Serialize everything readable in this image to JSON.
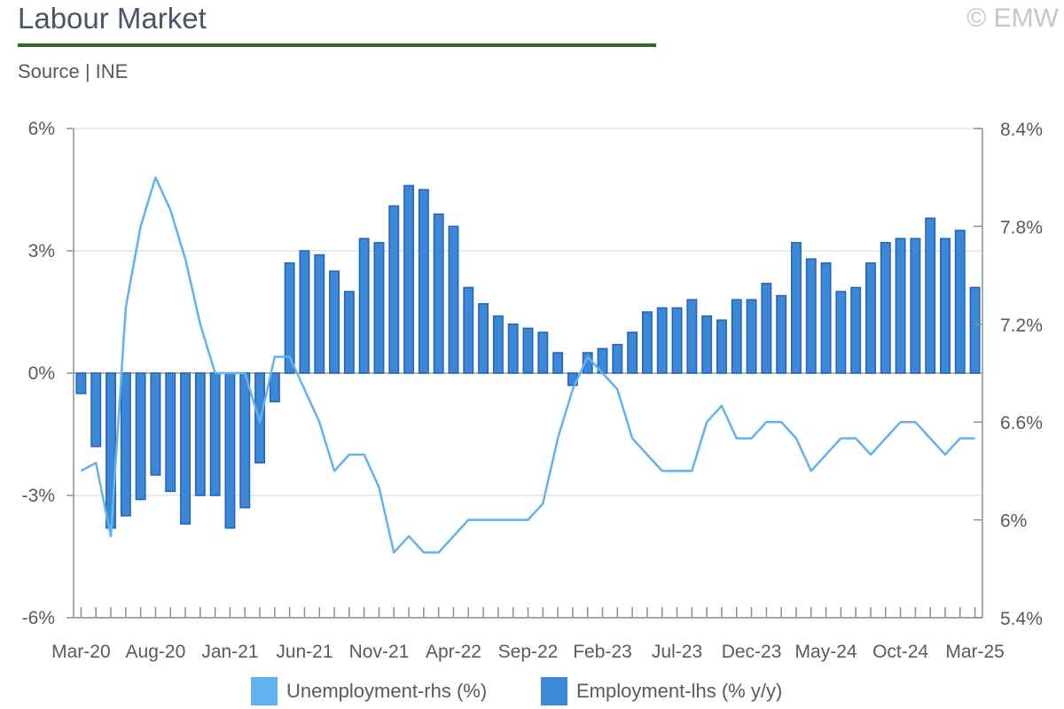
{
  "header": {
    "title": "Labour Market",
    "copyright": "© EMW",
    "source": "Source | INE"
  },
  "legend": {
    "unemployment_label": "Unemployment-rhs (%)",
    "employment_label": "Employment-lhs (% y/y)"
  },
  "colors": {
    "bar_fill": "#3a88d6",
    "bar_edge": "#2563b8",
    "line": "#62b2f0",
    "axis": "#8c9096",
    "grid": "#d9e5f2",
    "title_rule": "#2e6b2b"
  },
  "chart_data": {
    "type": "bar",
    "title": "Labour Market",
    "subtitle": "Source | INE",
    "x_tick_labels": [
      "Mar-20",
      "Aug-20",
      "Jan-21",
      "Jun-21",
      "Nov-21",
      "Apr-22",
      "Sep-22",
      "Feb-23",
      "Jul-23",
      "Dec-23",
      "May-24",
      "Oct-24",
      "Mar-25"
    ],
    "y_left": {
      "range": [
        -6,
        6
      ],
      "ticks": [
        6,
        3,
        0,
        -3,
        -6
      ],
      "tick_labels": [
        "6%",
        "3%",
        "0%",
        "-3%",
        "-6%"
      ]
    },
    "y_right": {
      "range": [
        5.4,
        8.4
      ],
      "ticks": [
        8.4,
        7.8,
        7.2,
        6.6,
        6.0,
        5.4
      ],
      "tick_labels": [
        "8.4%",
        "7.8%",
        "7.2%",
        "6.6%",
        "6%",
        "5.4%"
      ]
    },
    "grid": true,
    "legend_position": "bottom",
    "categories": [
      "Mar-20",
      "Apr-20",
      "May-20",
      "Jun-20",
      "Jul-20",
      "Aug-20",
      "Sep-20",
      "Oct-20",
      "Nov-20",
      "Dec-20",
      "Jan-21",
      "Feb-21",
      "Mar-21",
      "Apr-21",
      "May-21",
      "Jun-21",
      "Jul-21",
      "Aug-21",
      "Sep-21",
      "Oct-21",
      "Nov-21",
      "Dec-21",
      "Jan-22",
      "Feb-22",
      "Mar-22",
      "Apr-22",
      "May-22",
      "Jun-22",
      "Jul-22",
      "Aug-22",
      "Sep-22",
      "Oct-22",
      "Nov-22",
      "Dec-22",
      "Jan-23",
      "Feb-23",
      "Mar-23",
      "Apr-23",
      "May-23",
      "Jun-23",
      "Jul-23",
      "Aug-23",
      "Sep-23",
      "Oct-23",
      "Nov-23",
      "Dec-23",
      "Jan-24",
      "Feb-24",
      "Mar-24",
      "Apr-24",
      "May-24",
      "Jun-24",
      "Jul-24",
      "Aug-24",
      "Sep-24",
      "Oct-24",
      "Nov-24",
      "Dec-24",
      "Jan-25",
      "Feb-25",
      "Mar-25"
    ],
    "series": [
      {
        "name": "Employment-lhs (% y/y)",
        "type": "bar",
        "axis": "left",
        "values": [
          -0.5,
          -1.8,
          -3.8,
          -3.5,
          -3.1,
          -2.5,
          -2.9,
          -3.7,
          -3.0,
          -3.0,
          -3.8,
          -3.3,
          -2.2,
          -0.7,
          2.7,
          3.0,
          2.9,
          2.5,
          2.0,
          3.3,
          3.2,
          4.1,
          4.6,
          4.5,
          3.9,
          3.6,
          2.1,
          1.7,
          1.4,
          1.2,
          1.1,
          1.0,
          0.5,
          -0.3,
          0.5,
          0.6,
          0.7,
          1.0,
          1.5,
          1.6,
          1.6,
          1.8,
          1.4,
          1.3,
          1.8,
          1.8,
          2.2,
          1.9,
          3.2,
          2.8,
          2.7,
          2.0,
          2.1,
          2.7,
          3.2,
          3.3,
          3.3,
          3.8,
          3.3,
          3.5,
          2.1
        ]
      },
      {
        "name": "Unemployment-rhs (%)",
        "type": "line",
        "axis": "right",
        "values": [
          6.3,
          6.35,
          5.9,
          7.3,
          7.8,
          8.1,
          7.9,
          7.6,
          7.2,
          6.9,
          6.9,
          6.9,
          6.6,
          7.0,
          7.0,
          6.8,
          6.6,
          6.3,
          6.4,
          6.4,
          6.2,
          5.8,
          5.9,
          5.8,
          5.8,
          5.9,
          6.0,
          6.0,
          6.0,
          6.0,
          6.0,
          6.1,
          6.5,
          6.8,
          7.0,
          6.9,
          6.8,
          6.5,
          6.4,
          6.3,
          6.3,
          6.3,
          6.6,
          6.7,
          6.5,
          6.5,
          6.6,
          6.6,
          6.5,
          6.3,
          6.4,
          6.5,
          6.5,
          6.4,
          6.5,
          6.6,
          6.6,
          6.5,
          6.4,
          6.5,
          6.5
        ]
      }
    ]
  }
}
